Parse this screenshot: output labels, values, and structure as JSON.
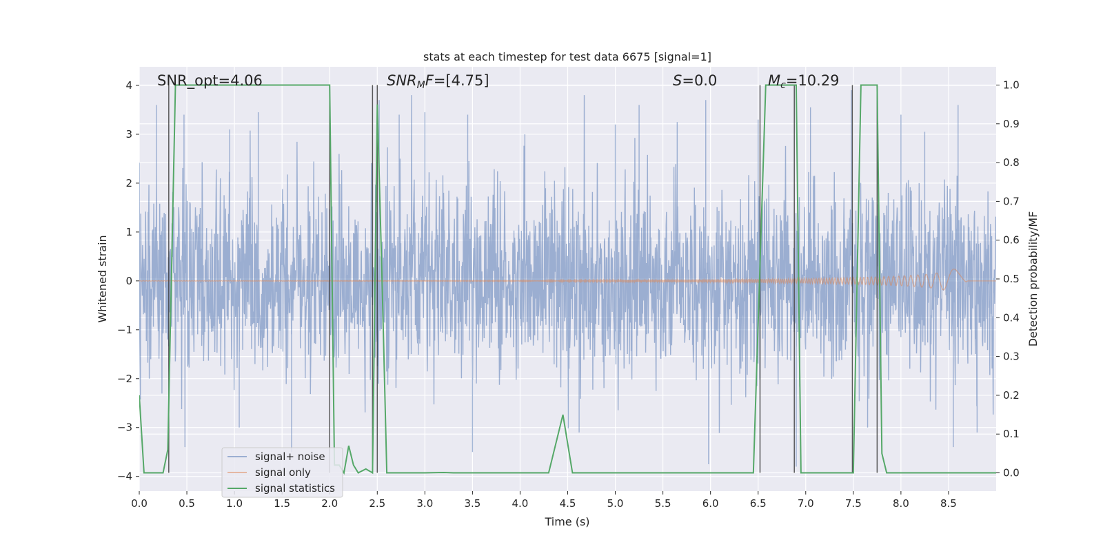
{
  "chart_data": {
    "type": "line",
    "title": "stats at each timestep for test data 6675 [signal=1]",
    "xlabel": "Time (s)",
    "ylabel_left": "Whitened strain",
    "ylabel_right": "Detection probability/MF",
    "xlim": [
      0.0,
      9.0
    ],
    "ylim_left": [
      -4.3,
      4.38
    ],
    "ylim_right": [
      -0.047,
      1.047
    ],
    "x_ticks": [
      "0.0",
      "0.5",
      "1.0",
      "1.5",
      "2.0",
      "2.5",
      "3.0",
      "3.5",
      "4.0",
      "4.5",
      "5.0",
      "5.5",
      "6.0",
      "6.5",
      "7.0",
      "7.5",
      "8.0",
      "8.5"
    ],
    "y_ticks_left": [
      "4",
      "3",
      "2",
      "1",
      "0",
      "−1",
      "−2",
      "−3",
      "−4"
    ],
    "y_ticks_right": [
      "1.0",
      "0.9",
      "0.8",
      "0.7",
      "0.6",
      "0.5",
      "0.4",
      "0.3",
      "0.2",
      "0.1",
      "0.0"
    ],
    "grid": true,
    "legend_position": "lower-left",
    "annotations": {
      "snr_opt": "SNR_opt=4.06",
      "snr_mf_italic": "SNR",
      "snr_mf_sub": "M",
      "snr_mf_italic2": "F",
      "snr_mf_value": "=[4.75]",
      "s_italic": "S",
      "s_value": "=0.0",
      "mc_italic": "M",
      "mc_sub": "c",
      "mc_value": "=10.29"
    },
    "series": [
      {
        "name": "signal+ noise",
        "color": "#4c72b0",
        "opacity": 0.5,
        "axis": "left",
        "description_values": {
          "typical_amplitude": 1.0,
          "peak_min": -3.9,
          "peak_max": 3.8
        }
      },
      {
        "name": "signal only",
        "color": "#dd8452",
        "opacity": 0.5,
        "axis": "left",
        "x": [
          0.0,
          4.0,
          5.0,
          6.0,
          7.0,
          7.5,
          8.0,
          8.3,
          8.5,
          8.6,
          8.65,
          8.68,
          8.7
        ],
        "envelope": [
          0.005,
          0.01,
          0.02,
          0.03,
          0.05,
          0.07,
          0.1,
          0.14,
          0.2,
          0.28,
          0.38,
          0.6,
          0.0
        ]
      },
      {
        "name": "signal statistics",
        "color": "#55a868",
        "axis": "right",
        "x": [
          0.0,
          0.05,
          0.25,
          0.3,
          0.38,
          0.45,
          2.0,
          2.05,
          2.1,
          2.15,
          2.2,
          2.25,
          2.3,
          2.38,
          2.45,
          2.5,
          2.55,
          2.6,
          3.0,
          3.2,
          3.3,
          3.5,
          4.0,
          4.3,
          4.45,
          4.55,
          4.6,
          5.0,
          6.0,
          6.45,
          6.58,
          6.9,
          6.95,
          7.4,
          7.5,
          7.58,
          7.75,
          7.8,
          7.85,
          8.0,
          8.5,
          9.0
        ],
        "values": [
          0.2,
          0.0,
          0.0,
          0.06,
          1.0,
          1.0,
          1.0,
          0.02,
          0.02,
          0.0,
          0.07,
          0.02,
          0.0,
          0.01,
          0.0,
          0.95,
          0.5,
          0.0,
          0.0,
          0.001,
          0.0,
          0.0,
          0.0,
          0.0,
          0.15,
          0.0,
          0.0,
          0.0,
          0.0,
          0.0,
          1.0,
          1.0,
          0.0,
          0.0,
          0.0,
          1.0,
          1.0,
          0.05,
          0.0,
          0.0,
          0.0,
          0.0
        ]
      }
    ],
    "vertical_markers_x": [
      0.31,
      2.0,
      2.45,
      2.5,
      6.52,
      6.88,
      7.49,
      7.75
    ],
    "noise_spikes": [
      {
        "x": 0.18,
        "y": 3.6
      },
      {
        "x": 0.47,
        "y": 3.4
      },
      {
        "x": 0.48,
        "y": -3.4
      },
      {
        "x": 0.95,
        "y": 3.1
      },
      {
        "x": 1.05,
        "y": -3.0
      },
      {
        "x": 1.25,
        "y": 3.45
      },
      {
        "x": 1.6,
        "y": -3.5
      },
      {
        "x": 2.52,
        "y": 3.7
      },
      {
        "x": 2.73,
        "y": 3.4
      },
      {
        "x": 3.0,
        "y": 3.45
      },
      {
        "x": 3.45,
        "y": 3.4
      },
      {
        "x": 3.5,
        "y": -3.5
      },
      {
        "x": 4.05,
        "y": 3.0
      },
      {
        "x": 4.62,
        "y": -3.1
      },
      {
        "x": 5.0,
        "y": 3.2
      },
      {
        "x": 5.25,
        "y": 3.6
      },
      {
        "x": 5.65,
        "y": 3.25
      },
      {
        "x": 5.95,
        "y": 3.7
      },
      {
        "x": 5.98,
        "y": -3.75
      },
      {
        "x": 6.5,
        "y": 3.3
      },
      {
        "x": 6.9,
        "y": -3.8
      },
      {
        "x": 7.05,
        "y": 3.55
      },
      {
        "x": 7.48,
        "y": 3.9
      },
      {
        "x": 7.65,
        "y": -3.0
      },
      {
        "x": 8.0,
        "y": 3.4
      },
      {
        "x": 8.25,
        "y": 3.05
      },
      {
        "x": 8.6,
        "y": 3.6
      },
      {
        "x": 8.55,
        "y": -3.4
      },
      {
        "x": 8.8,
        "y": -3.1
      }
    ]
  }
}
